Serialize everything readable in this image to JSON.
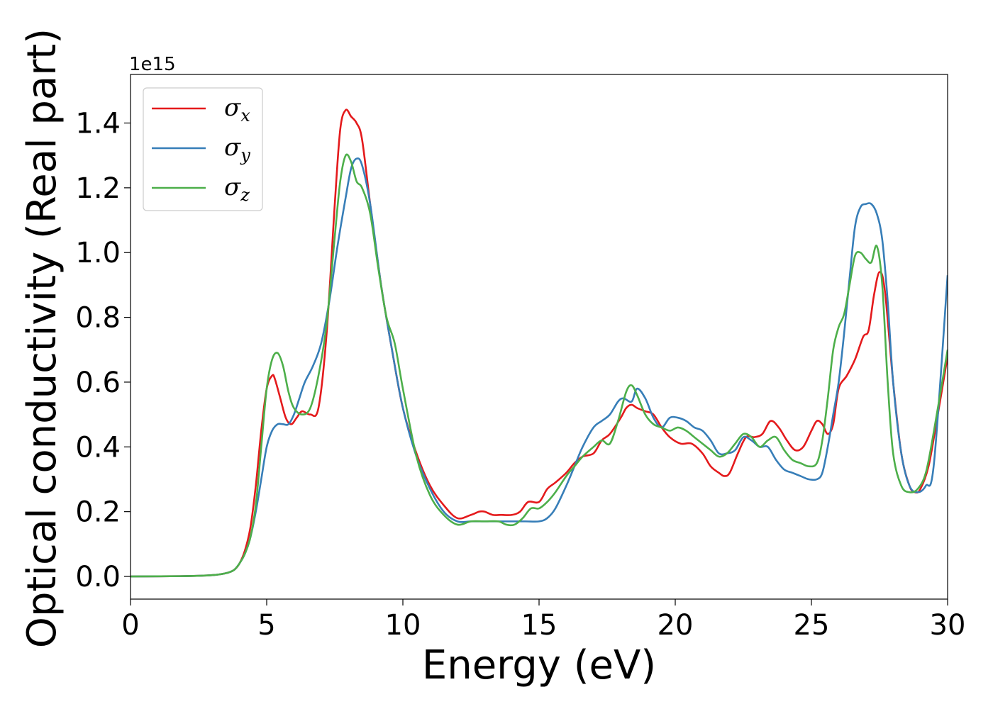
{
  "chart_data": {
    "type": "line",
    "xlabel": "Energy (eV)",
    "ylabel": "Optical conductivity (Real part)",
    "y_offset_label": "1e15",
    "xlim": [
      0,
      30
    ],
    "ylim": [
      -0.07,
      1.55
    ],
    "x_ticks": [
      0,
      5,
      10,
      15,
      20,
      25,
      30
    ],
    "x_tick_labels": [
      "0",
      "5",
      "10",
      "15",
      "20",
      "25",
      "30"
    ],
    "y_ticks": [
      0.0,
      0.2,
      0.4,
      0.6,
      0.8,
      1.0,
      1.2,
      1.4
    ],
    "y_tick_labels": [
      "0.0",
      "0.2",
      "0.4",
      "0.6",
      "0.8",
      "1.0",
      "1.2",
      "1.4"
    ],
    "grid": false,
    "legend_position": "top-left",
    "series": [
      {
        "name": "σ",
        "subscript": "x",
        "color": "#e41a1c",
        "x": [
          0,
          2,
          3,
          3.5,
          3.8,
          4.0,
          4.2,
          4.4,
          4.6,
          4.8,
          5.0,
          5.2,
          5.3,
          5.5,
          5.7,
          5.9,
          6.1,
          6.3,
          6.6,
          6.9,
          7.2,
          7.5,
          7.7,
          7.9,
          8.1,
          8.3,
          8.5,
          8.8,
          9.2,
          9.6,
          10.0,
          10.5,
          11.0,
          11.5,
          12.0,
          12.5,
          12.8,
          13.0,
          13.3,
          13.6,
          14.0,
          14.3,
          14.6,
          15.0,
          15.3,
          15.6,
          16.0,
          16.3,
          16.6,
          17.0,
          17.3,
          17.6,
          18.0,
          18.2,
          18.4,
          18.6,
          18.9,
          19.2,
          19.5,
          19.8,
          20.2,
          20.6,
          21.0,
          21.3,
          21.6,
          21.8,
          22.0,
          22.3,
          22.6,
          22.9,
          23.2,
          23.5,
          23.8,
          24.1,
          24.4,
          24.7,
          25.0,
          25.2,
          25.4,
          25.6,
          25.8,
          26.0,
          26.3,
          26.6,
          26.9,
          27.1,
          27.3,
          27.5,
          27.7,
          28.0,
          28.3,
          28.6,
          28.8,
          29.0,
          29.3,
          29.6,
          30.0
        ],
        "y": [
          0.0,
          0.001,
          0.004,
          0.01,
          0.02,
          0.04,
          0.08,
          0.15,
          0.28,
          0.45,
          0.58,
          0.62,
          0.61,
          0.55,
          0.49,
          0.47,
          0.49,
          0.51,
          0.5,
          0.52,
          0.75,
          1.15,
          1.38,
          1.44,
          1.42,
          1.4,
          1.35,
          1.15,
          0.9,
          0.7,
          0.52,
          0.38,
          0.28,
          0.22,
          0.18,
          0.19,
          0.2,
          0.2,
          0.19,
          0.19,
          0.19,
          0.2,
          0.23,
          0.23,
          0.27,
          0.29,
          0.32,
          0.35,
          0.37,
          0.38,
          0.42,
          0.44,
          0.49,
          0.52,
          0.53,
          0.52,
          0.51,
          0.5,
          0.46,
          0.43,
          0.41,
          0.41,
          0.38,
          0.34,
          0.32,
          0.31,
          0.32,
          0.38,
          0.43,
          0.43,
          0.44,
          0.48,
          0.46,
          0.42,
          0.39,
          0.4,
          0.45,
          0.48,
          0.47,
          0.44,
          0.47,
          0.58,
          0.62,
          0.67,
          0.74,
          0.76,
          0.87,
          0.94,
          0.88,
          0.6,
          0.38,
          0.28,
          0.26,
          0.27,
          0.34,
          0.48,
          0.68
        ]
      },
      {
        "name": "σ",
        "subscript": "y",
        "color": "#377eb8",
        "x": [
          0,
          2,
          3,
          3.5,
          3.8,
          4.0,
          4.2,
          4.4,
          4.6,
          4.8,
          5.0,
          5.2,
          5.4,
          5.6,
          5.8,
          6.0,
          6.2,
          6.4,
          6.7,
          7.0,
          7.3,
          7.6,
          7.9,
          8.1,
          8.3,
          8.5,
          8.8,
          9.2,
          9.6,
          10.0,
          10.5,
          11.0,
          11.5,
          12.0,
          12.5,
          13.0,
          13.5,
          14.0,
          14.5,
          15.0,
          15.3,
          15.6,
          16.0,
          16.3,
          16.6,
          17.0,
          17.3,
          17.6,
          17.9,
          18.1,
          18.4,
          18.6,
          18.9,
          19.2,
          19.5,
          19.8,
          20.1,
          20.4,
          20.7,
          21.0,
          21.3,
          21.6,
          21.9,
          22.2,
          22.5,
          22.8,
          23.1,
          23.4,
          23.7,
          24.0,
          24.3,
          24.6,
          24.9,
          25.2,
          25.4,
          25.6,
          25.8,
          26.0,
          26.2,
          26.4,
          26.6,
          26.8,
          27.0,
          27.2,
          27.4,
          27.6,
          27.8,
          28.0,
          28.3,
          28.6,
          28.9,
          29.2,
          29.5,
          30.0
        ],
        "y": [
          0.0,
          0.001,
          0.004,
          0.01,
          0.02,
          0.04,
          0.07,
          0.12,
          0.2,
          0.3,
          0.4,
          0.45,
          0.47,
          0.47,
          0.47,
          0.5,
          0.55,
          0.6,
          0.65,
          0.72,
          0.85,
          1.02,
          1.17,
          1.26,
          1.29,
          1.27,
          1.15,
          0.9,
          0.7,
          0.52,
          0.37,
          0.27,
          0.2,
          0.17,
          0.17,
          0.17,
          0.17,
          0.17,
          0.17,
          0.17,
          0.18,
          0.21,
          0.28,
          0.34,
          0.4,
          0.46,
          0.48,
          0.5,
          0.54,
          0.55,
          0.54,
          0.58,
          0.55,
          0.49,
          0.46,
          0.49,
          0.49,
          0.48,
          0.46,
          0.45,
          0.42,
          0.38,
          0.38,
          0.39,
          0.43,
          0.42,
          0.4,
          0.4,
          0.36,
          0.33,
          0.32,
          0.31,
          0.3,
          0.3,
          0.32,
          0.4,
          0.5,
          0.6,
          0.75,
          0.92,
          1.08,
          1.14,
          1.15,
          1.15,
          1.12,
          1.04,
          0.85,
          0.6,
          0.38,
          0.28,
          0.26,
          0.28,
          0.35,
          0.93
        ]
      },
      {
        "name": "σ",
        "subscript": "z",
        "color": "#4daf4a",
        "x": [
          0,
          2,
          3,
          3.5,
          3.8,
          4.0,
          4.2,
          4.4,
          4.6,
          4.8,
          5.0,
          5.2,
          5.4,
          5.6,
          5.8,
          6.0,
          6.3,
          6.6,
          6.9,
          7.2,
          7.5,
          7.7,
          7.9,
          8.1,
          8.3,
          8.5,
          8.8,
          9.1,
          9.4,
          9.7,
          10.0,
          10.5,
          11.0,
          11.5,
          12.0,
          12.5,
          13.0,
          13.5,
          13.8,
          14.1,
          14.4,
          14.7,
          15.0,
          15.3,
          15.6,
          16.0,
          16.3,
          16.6,
          17.0,
          17.3,
          17.6,
          17.9,
          18.2,
          18.4,
          18.6,
          18.9,
          19.2,
          19.5,
          19.8,
          20.1,
          20.4,
          20.7,
          21.0,
          21.3,
          21.6,
          21.9,
          22.2,
          22.5,
          22.8,
          23.1,
          23.4,
          23.7,
          24.0,
          24.3,
          24.6,
          24.9,
          25.2,
          25.4,
          25.6,
          25.8,
          26.0,
          26.2,
          26.4,
          26.6,
          26.8,
          27.0,
          27.2,
          27.4,
          27.6,
          27.8,
          28.0,
          28.3,
          28.6,
          28.9,
          29.2,
          29.5,
          30.0
        ],
        "y": [
          0.0,
          0.001,
          0.004,
          0.01,
          0.02,
          0.04,
          0.07,
          0.12,
          0.22,
          0.4,
          0.58,
          0.67,
          0.69,
          0.65,
          0.57,
          0.52,
          0.5,
          0.52,
          0.62,
          0.78,
          1.05,
          1.22,
          1.3,
          1.28,
          1.22,
          1.2,
          1.12,
          0.95,
          0.8,
          0.72,
          0.58,
          0.37,
          0.25,
          0.19,
          0.16,
          0.17,
          0.17,
          0.17,
          0.16,
          0.16,
          0.18,
          0.21,
          0.21,
          0.23,
          0.26,
          0.31,
          0.34,
          0.37,
          0.4,
          0.42,
          0.41,
          0.48,
          0.57,
          0.59,
          0.56,
          0.5,
          0.47,
          0.46,
          0.45,
          0.46,
          0.45,
          0.43,
          0.41,
          0.39,
          0.37,
          0.38,
          0.41,
          0.44,
          0.43,
          0.4,
          0.42,
          0.43,
          0.39,
          0.36,
          0.35,
          0.34,
          0.35,
          0.42,
          0.55,
          0.7,
          0.77,
          0.81,
          0.9,
          0.99,
          1.0,
          0.98,
          0.97,
          1.02,
          0.9,
          0.6,
          0.38,
          0.28,
          0.26,
          0.27,
          0.32,
          0.45,
          0.7
        ]
      }
    ]
  }
}
